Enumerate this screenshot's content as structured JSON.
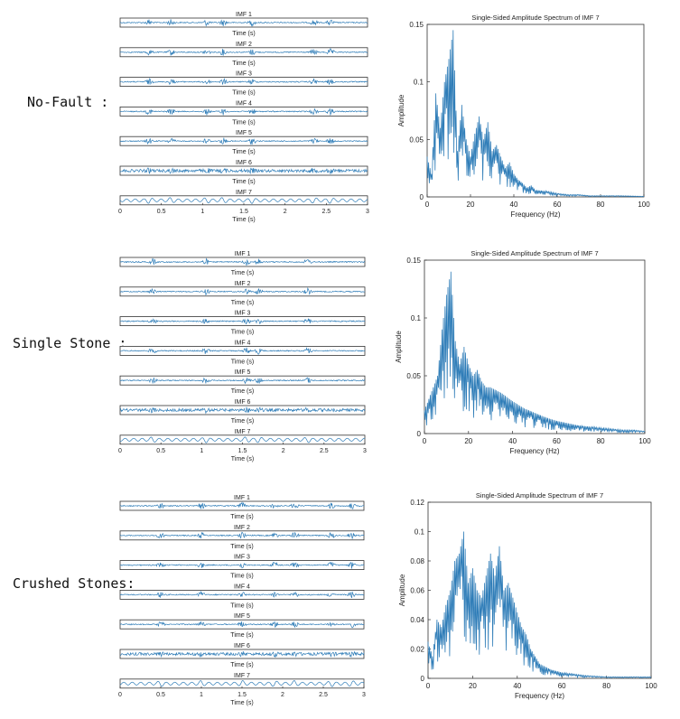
{
  "sections": [
    {
      "label": "No-Fault :",
      "imf": {
        "titles": [
          "IMF 1",
          "IMF 2",
          "IMF 3",
          "IMF 4",
          "IMF 5",
          "IMF 6",
          "IMF 7"
        ],
        "xlabel": "Time (s)",
        "xticks": [
          0,
          0.5,
          1,
          1.5,
          2,
          2.5,
          3
        ],
        "xlim": [
          0,
          3
        ],
        "bursts": [
          0.35,
          0.62,
          1.05,
          1.25,
          1.6,
          2.35,
          2.55
        ]
      },
      "chart_data": {
        "type": "line",
        "title": "Single-Sided Amplitude Spectrum of IMF 7",
        "xlabel": "Frequency (Hz)",
        "ylabel": "Amplitude",
        "xlim": [
          0,
          100
        ],
        "ylim": [
          0,
          0.15
        ],
        "xticks": [
          0,
          20,
          40,
          60,
          80,
          100
        ],
        "yticks": [
          0,
          0.05,
          0.1,
          0.15
        ],
        "grid": false,
        "series": [
          {
            "x": [
              0,
              2,
              4,
              6,
              8,
              10,
              12,
              14,
              16,
              18,
              20,
              22,
              24,
              26,
              28,
              30,
              32,
              34,
              36,
              38,
              40,
              42,
              44,
              46,
              48,
              50,
              55,
              60,
              65,
              70,
              75,
              80,
              90,
              100
            ],
            "values": [
              0.035,
              0.02,
              0.09,
              0.06,
              0.1,
              0.12,
              0.145,
              0.04,
              0.08,
              0.05,
              0.035,
              0.055,
              0.07,
              0.05,
              0.065,
              0.04,
              0.045,
              0.035,
              0.025,
              0.03,
              0.02,
              0.015,
              0.012,
              0.008,
              0.01,
              0.006,
              0.005,
              0.003,
              0.002,
              0.002,
              0.001,
              0.001,
              0.001,
              0.0005
            ]
          }
        ]
      }
    },
    {
      "label": "Single Stone :",
      "imf": {
        "titles": [
          "IMF 1",
          "IMF 2",
          "IMF 3",
          "IMF 4",
          "IMF 5",
          "IMF 6",
          "IMF 7"
        ],
        "xlabel": "Time (s)",
        "xticks": [
          0,
          0.5,
          1,
          1.5,
          2,
          2.5,
          3
        ],
        "xlim": [
          0,
          3
        ],
        "bursts": [
          0.4,
          1.05,
          1.55,
          1.7,
          2.3
        ]
      },
      "chart_data": {
        "type": "line",
        "title": "Single-Sided Amplitude Spectrum of IMF 7",
        "xlabel": "Frequency (Hz)",
        "ylabel": "Amplitude",
        "xlim": [
          0,
          100
        ],
        "ylim": [
          0,
          0.15
        ],
        "xticks": [
          0,
          20,
          40,
          60,
          80,
          100
        ],
        "yticks": [
          0,
          0.05,
          0.1,
          0.15
        ],
        "grid": false,
        "series": [
          {
            "x": [
              0,
              2,
              4,
              6,
              8,
              10,
              12,
              14,
              16,
              18,
              20,
              22,
              24,
              26,
              28,
              30,
              35,
              40,
              45,
              50,
              55,
              60,
              65,
              70,
              75,
              80,
              85,
              90,
              95,
              100
            ],
            "values": [
              0.02,
              0.03,
              0.04,
              0.05,
              0.09,
              0.12,
              0.14,
              0.08,
              0.06,
              0.075,
              0.06,
              0.05,
              0.055,
              0.045,
              0.04,
              0.04,
              0.035,
              0.028,
              0.022,
              0.018,
              0.014,
              0.011,
              0.009,
              0.007,
              0.006,
              0.005,
              0.004,
              0.003,
              0.003,
              0.002
            ]
          }
        ]
      }
    },
    {
      "label": "Crushed Stones:",
      "imf": {
        "titles": [
          "IMF 1",
          "IMF 2",
          "IMF 3",
          "IMF 4",
          "IMF 5",
          "IMF 6",
          "IMF 7"
        ],
        "xlabel": "Time (s)",
        "xticks": [
          0,
          0.5,
          1,
          1.5,
          2,
          2.5,
          3
        ],
        "xlim": [
          0,
          3
        ],
        "bursts": [
          0.5,
          1.0,
          1.5,
          1.9,
          2.15,
          2.6,
          2.85
        ]
      },
      "chart_data": {
        "type": "line",
        "title": "Single-Sided Amplitude Spectrum of IMF 7",
        "xlabel": "Frequency (Hz)",
        "ylabel": "Amplitude",
        "xlim": [
          0,
          100
        ],
        "ylim": [
          0,
          0.12
        ],
        "xticks": [
          0,
          20,
          40,
          60,
          80,
          100
        ],
        "yticks": [
          0,
          0.02,
          0.04,
          0.06,
          0.08,
          0.1,
          0.12
        ],
        "grid": false,
        "series": [
          {
            "x": [
              0,
              2,
              4,
              6,
              8,
              10,
              12,
              14,
              16,
              18,
              20,
              22,
              24,
              26,
              28,
              30,
              32,
              34,
              36,
              38,
              40,
              42,
              44,
              46,
              48,
              50,
              55,
              60,
              65,
              70,
              80,
              90,
              100
            ],
            "values": [
              0.025,
              0.015,
              0.04,
              0.035,
              0.05,
              0.06,
              0.08,
              0.085,
              0.1,
              0.065,
              0.075,
              0.06,
              0.055,
              0.07,
              0.085,
              0.07,
              0.09,
              0.06,
              0.065,
              0.055,
              0.045,
              0.035,
              0.03,
              0.02,
              0.015,
              0.01,
              0.006,
              0.004,
              0.003,
              0.002,
              0.001,
              0.001,
              0.001
            ]
          }
        ]
      }
    }
  ],
  "colors": {
    "line": "#2f7db8",
    "axis": "#333333",
    "text": "#222222"
  }
}
